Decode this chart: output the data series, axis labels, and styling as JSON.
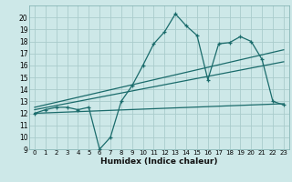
{
  "title": "",
  "xlabel": "Humidex (Indice chaleur)",
  "background_color": "#cde8e8",
  "grid_color": "#aacccc",
  "line_color": "#1a6b6b",
  "xlim": [
    -0.5,
    23.5
  ],
  "ylim": [
    9,
    21
  ],
  "yticks": [
    9,
    10,
    11,
    12,
    13,
    14,
    15,
    16,
    17,
    18,
    19,
    20
  ],
  "xticks": [
    0,
    1,
    2,
    3,
    4,
    5,
    6,
    7,
    8,
    9,
    10,
    11,
    12,
    13,
    14,
    15,
    16,
    17,
    18,
    19,
    20,
    21,
    22,
    23
  ],
  "series1_x": [
    0,
    1,
    2,
    3,
    4,
    5,
    6,
    7,
    8,
    9,
    10,
    11,
    12,
    13,
    14,
    15,
    16,
    17,
    18,
    19,
    20,
    21,
    22,
    23
  ],
  "series1_y": [
    12.0,
    12.3,
    12.5,
    12.5,
    12.3,
    12.5,
    9.0,
    10.0,
    13.0,
    14.3,
    16.0,
    17.8,
    18.8,
    20.3,
    19.3,
    18.5,
    14.8,
    17.8,
    17.9,
    18.4,
    18.0,
    16.5,
    13.0,
    12.7
  ],
  "line1_x": [
    0,
    23
  ],
  "line1_y": [
    12.0,
    12.8
  ],
  "line2_x": [
    0,
    23
  ],
  "line2_y": [
    12.3,
    16.3
  ],
  "line3_x": [
    0,
    23
  ],
  "line3_y": [
    12.5,
    17.3
  ]
}
